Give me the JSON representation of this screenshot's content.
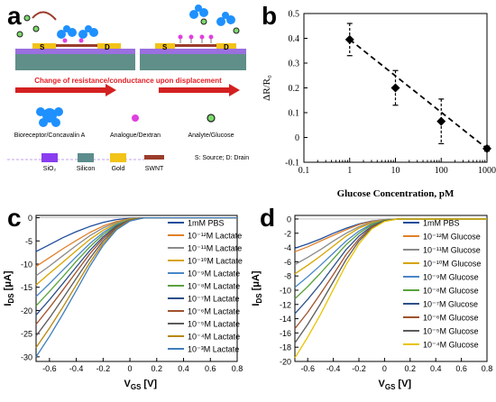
{
  "panels": {
    "a": {
      "letter": "a",
      "caption": "Change of resistance/conductance upon displacement",
      "source_label": "S",
      "drain_label": "D",
      "legend_species": [
        {
          "label": "Bioreceptor/Concavalin A",
          "icon": "star-icon",
          "color": "#1e90ff"
        },
        {
          "label": "Analogue/Dextran",
          "icon": "circle-icon",
          "color": "#e040e0"
        },
        {
          "label": "Analyte/Glucose",
          "icon": "ring-icon",
          "color": "#39b54a"
        }
      ],
      "legend_materials": [
        {
          "label": "SiO₂",
          "color": "#8a3df0"
        },
        {
          "label": "Silicon",
          "color": "#5c8c8c"
        },
        {
          "label": "Gold",
          "color": "#f2c318"
        },
        {
          "label": "SWNT",
          "color": "#9b3d2b"
        }
      ],
      "legend_note": "S: Source; D: Drain",
      "colors": {
        "arrow": "#d42020",
        "caption": "#e31e24",
        "substrate": "#5f8f88",
        "oxide": "#9a6fe0"
      }
    },
    "b": {
      "letter": "b",
      "chart_data": {
        "type": "scatter",
        "x": [
          1,
          10,
          100,
          1000
        ],
        "y": [
          0.395,
          0.2,
          0.065,
          -0.045
        ],
        "yerr_upper": [
          0.065,
          0.07,
          0.09,
          0.01
        ],
        "yerr_lower": [
          0.065,
          0.07,
          0.09,
          0.01
        ],
        "trendline": "dashed",
        "xscale": "log",
        "xlim": [
          0.1,
          1000
        ],
        "ylim": [
          -0.1,
          0.5
        ],
        "xticks": [
          "0.1",
          "1",
          "10",
          "100",
          "1000"
        ],
        "yticks": [
          "-0.1",
          "0",
          "0.1",
          "0.2",
          "0.3",
          "0.4",
          "0.5"
        ],
        "xlabel": "Glucose Concentration, pM",
        "ylabel": "ΔR/R₀",
        "grid": false
      }
    },
    "c": {
      "letter": "c",
      "chart_data": {
        "type": "line",
        "x": [
          -0.7,
          -0.6,
          -0.5,
          -0.4,
          -0.3,
          -0.2,
          -0.1,
          0,
          0.1,
          0.2,
          0.4,
          0.6,
          0.8
        ],
        "xlim": [
          -0.7,
          0.8
        ],
        "ylim": [
          -31,
          0.5
        ],
        "xticks": [
          "-0.6",
          "-0.4",
          "-0.2",
          "0",
          "0.2",
          "0.4",
          "0.6",
          "0.8"
        ],
        "yticks": [
          "0",
          "-5",
          "-10",
          "-15",
          "-20",
          "-25",
          "-30"
        ],
        "xlabel": "V",
        "xlabel_sub": "GS",
        "xlabel_unit": "[V]",
        "ylabel": "I",
        "ylabel_sub": "DS",
        "ylabel_unit": "[μA]",
        "legend_position": "top-right",
        "series": [
          {
            "name": "1mM PBS",
            "color": "#1f4e9c",
            "values": [
              -7.3,
              -5.8,
              -4.3,
              -3.0,
              -1.9,
              -1.0,
              -0.4,
              -0.1,
              0,
              0,
              0,
              0,
              0
            ]
          },
          {
            "name": "10⁻¹²M Lactate",
            "color": "#e0802a",
            "values": [
              -10.5,
              -8.6,
              -6.7,
              -4.9,
              -3.2,
              -1.8,
              -0.8,
              -0.2,
              -0.05,
              0,
              0,
              0,
              0
            ]
          },
          {
            "name": "10⁻¹¹M Lactate",
            "color": "#8b8b8b",
            "values": [
              -12.5,
              -10.4,
              -8.2,
              -6.0,
              -3.9,
              -2.2,
              -1.0,
              -0.3,
              -0.05,
              0,
              0,
              0,
              0
            ]
          },
          {
            "name": "10⁻¹⁰M Lactate",
            "color": "#d7a400",
            "values": [
              -14.5,
              -12.0,
              -9.6,
              -7.1,
              -4.7,
              -2.7,
              -1.2,
              -0.3,
              -0.05,
              0,
              0,
              0,
              0
            ]
          },
          {
            "name": "10⁻⁹M Lactate",
            "color": "#4a86c8",
            "values": [
              -17.0,
              -14.2,
              -11.3,
              -8.4,
              -5.6,
              -3.2,
              -1.4,
              -0.4,
              -0.05,
              0,
              0,
              0,
              0
            ]
          },
          {
            "name": "10⁻⁸M Lactate",
            "color": "#5aa23c",
            "values": [
              -19.0,
              -15.9,
              -12.7,
              -9.4,
              -6.3,
              -3.6,
              -1.6,
              -0.4,
              -0.05,
              0,
              0,
              0,
              0
            ]
          },
          {
            "name": "10⁻⁷M Lactate",
            "color": "#2d4f8a",
            "values": [
              -21.0,
              -17.7,
              -14.2,
              -10.6,
              -7.1,
              -4.1,
              -1.8,
              -0.5,
              -0.05,
              0,
              0,
              0,
              0
            ]
          },
          {
            "name": "10⁻⁶M Lactate",
            "color": "#a0522d",
            "values": [
              -23.0,
              -19.4,
              -15.6,
              -11.7,
              -7.8,
              -4.5,
              -2.0,
              -0.5,
              -0.05,
              0,
              0,
              0,
              0
            ]
          },
          {
            "name": "10⁻⁵M Lactate",
            "color": "#5c5c5c",
            "values": [
              -25.5,
              -21.6,
              -17.4,
              -13.1,
              -8.8,
              -5.0,
              -2.2,
              -0.6,
              -0.05,
              0,
              0,
              0,
              0
            ]
          },
          {
            "name": "10⁻⁴M Lactate",
            "color": "#b8860b",
            "values": [
              -28.0,
              -23.8,
              -19.3,
              -14.5,
              -9.7,
              -5.5,
              -2.4,
              -0.6,
              -0.05,
              0,
              0,
              0,
              0
            ]
          },
          {
            "name": "10⁻³M Lactate",
            "color": "#3f7fbf",
            "values": [
              -30.0,
              -25.6,
              -20.8,
              -15.7,
              -10.5,
              -6.0,
              -2.6,
              -0.7,
              -0.05,
              0,
              0,
              0,
              0
            ]
          }
        ]
      }
    },
    "d": {
      "letter": "d",
      "chart_data": {
        "type": "line",
        "x": [
          -0.7,
          -0.6,
          -0.5,
          -0.4,
          -0.3,
          -0.2,
          -0.1,
          0,
          0.1,
          0.2,
          0.4,
          0.6,
          0.8
        ],
        "xlim": [
          -0.7,
          0.8
        ],
        "ylim": [
          -20,
          0.5
        ],
        "xticks": [
          "-0.6",
          "-0.4",
          "-0.2",
          "0",
          "0.2",
          "0.4",
          "0.6",
          "0.8"
        ],
        "yticks": [
          "0",
          "-2",
          "-4",
          "-6",
          "-8",
          "-10",
          "-12",
          "-14",
          "-16",
          "-18",
          "-20"
        ],
        "xlabel": "V",
        "xlabel_sub": "GS",
        "xlabel_unit": "[V]",
        "ylabel": "I",
        "ylabel_sub": "DS",
        "ylabel_unit": "[μA]",
        "legend_position": "top-right",
        "series": [
          {
            "name": "1mM PBS",
            "color": "#1f4e9c",
            "values": [
              -4.1,
              -3.5,
              -2.8,
              -2.0,
              -1.3,
              -0.7,
              -0.3,
              -0.1,
              0,
              0,
              0,
              0,
              0
            ]
          },
          {
            "name": "10⁻¹²M Glucose",
            "color": "#e0802a",
            "values": [
              -4.6,
              -3.9,
              -3.1,
              -2.3,
              -1.5,
              -0.8,
              -0.35,
              -0.1,
              0,
              0,
              0,
              0,
              0
            ]
          },
          {
            "name": "10⁻¹¹M Glucose",
            "color": "#8b8b8b",
            "values": [
              -6.4,
              -5.4,
              -4.3,
              -3.1,
              -2.0,
              -1.1,
              -0.45,
              -0.1,
              0,
              0,
              0,
              0,
              0
            ]
          },
          {
            "name": "10⁻¹⁰M Glucose",
            "color": "#d7a400",
            "values": [
              -7.7,
              -6.5,
              -5.2,
              -3.8,
              -2.4,
              -1.3,
              -0.55,
              -0.15,
              0,
              0,
              0,
              0,
              0
            ]
          },
          {
            "name": "10⁻⁹M Glucose",
            "color": "#4a86c8",
            "values": [
              -9.6,
              -8.1,
              -6.5,
              -4.8,
              -3.1,
              -1.7,
              -0.7,
              -0.2,
              0,
              0,
              0,
              0,
              0
            ]
          },
          {
            "name": "10⁻⁸M Glucose",
            "color": "#5aa23c",
            "values": [
              -11.2,
              -9.5,
              -7.6,
              -5.6,
              -3.6,
              -2.0,
              -0.8,
              -0.2,
              0,
              0,
              0,
              0,
              0
            ]
          },
          {
            "name": "10⁻⁷M Glucose",
            "color": "#2d4f8a",
            "values": [
              -13.3,
              -11.3,
              -9.1,
              -6.7,
              -4.3,
              -2.4,
              -1.0,
              -0.25,
              0,
              0,
              0,
              0,
              0
            ]
          },
          {
            "name": "10⁻⁶M Glucose",
            "color": "#a0522d",
            "values": [
              -15.4,
              -13.1,
              -10.5,
              -7.8,
              -5.0,
              -2.8,
              -1.1,
              -0.3,
              0,
              0,
              0,
              0,
              0
            ]
          },
          {
            "name": "10⁻⁵M Glucose",
            "color": "#5c5c5c",
            "values": [
              -17.4,
              -14.8,
              -11.9,
              -8.8,
              -5.7,
              -3.1,
              -1.3,
              -0.3,
              0,
              0,
              0,
              0,
              0
            ]
          },
          {
            "name": "10⁻⁴M Glucose",
            "color": "#e8c400",
            "values": [
              -19.5,
              -16.6,
              -13.4,
              -9.9,
              -6.4,
              -3.5,
              -1.4,
              -0.35,
              0,
              0,
              0,
              0,
              0
            ]
          }
        ]
      }
    }
  }
}
